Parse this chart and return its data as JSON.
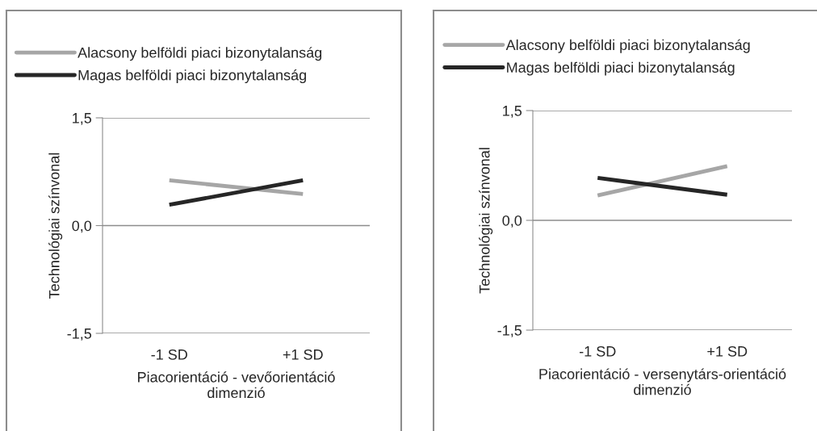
{
  "chart_data": [
    {
      "type": "line",
      "xlabel": "Piacorientáció - vevőorientáció\ndimenzió",
      "ylabel": "Technológiai színvonal",
      "categories": [
        "-1 SD",
        "+1 SD"
      ],
      "series": [
        {
          "name": "Alacsony belföldi piaci bizonytalanság",
          "color": "#a6a6a6",
          "values": [
            0.63,
            0.44
          ]
        },
        {
          "name": "Magas belföldi piaci bizonytalanság",
          "color": "#262626",
          "values": [
            0.29,
            0.63
          ]
        }
      ],
      "ylim": [
        -1.5,
        1.5
      ],
      "yticks": [
        {
          "value": -1.5,
          "label": "-1,5"
        },
        {
          "value": 0,
          "label": "0,0"
        },
        {
          "value": 1.5,
          "label": "1,5"
        }
      ],
      "grid": "y",
      "legend": "top",
      "marker": "none",
      "line_style": "solid"
    },
    {
      "type": "line",
      "xlabel": "Piacorientáció - versenytárs-orientáció\ndimenzió",
      "ylabel": "Technológiai színvonal",
      "categories": [
        "-1 SD",
        "+1 SD"
      ],
      "series": [
        {
          "name": "Alacsony belföldi piaci bizonytalanság",
          "color": "#a6a6a6",
          "values": [
            0.34,
            0.74
          ]
        },
        {
          "name": "Magas belföldi piaci bizonytalanság",
          "color": "#262626",
          "values": [
            0.58,
            0.35
          ]
        }
      ],
      "ylim": [
        -1.5,
        1.5
      ],
      "yticks": [
        {
          "value": -1.5,
          "label": "-1,5"
        },
        {
          "value": 0,
          "label": "0,0"
        },
        {
          "value": 1.5,
          "label": "1,5"
        }
      ],
      "grid": "y",
      "legend": "top",
      "marker": "none",
      "line_style": "solid"
    }
  ]
}
